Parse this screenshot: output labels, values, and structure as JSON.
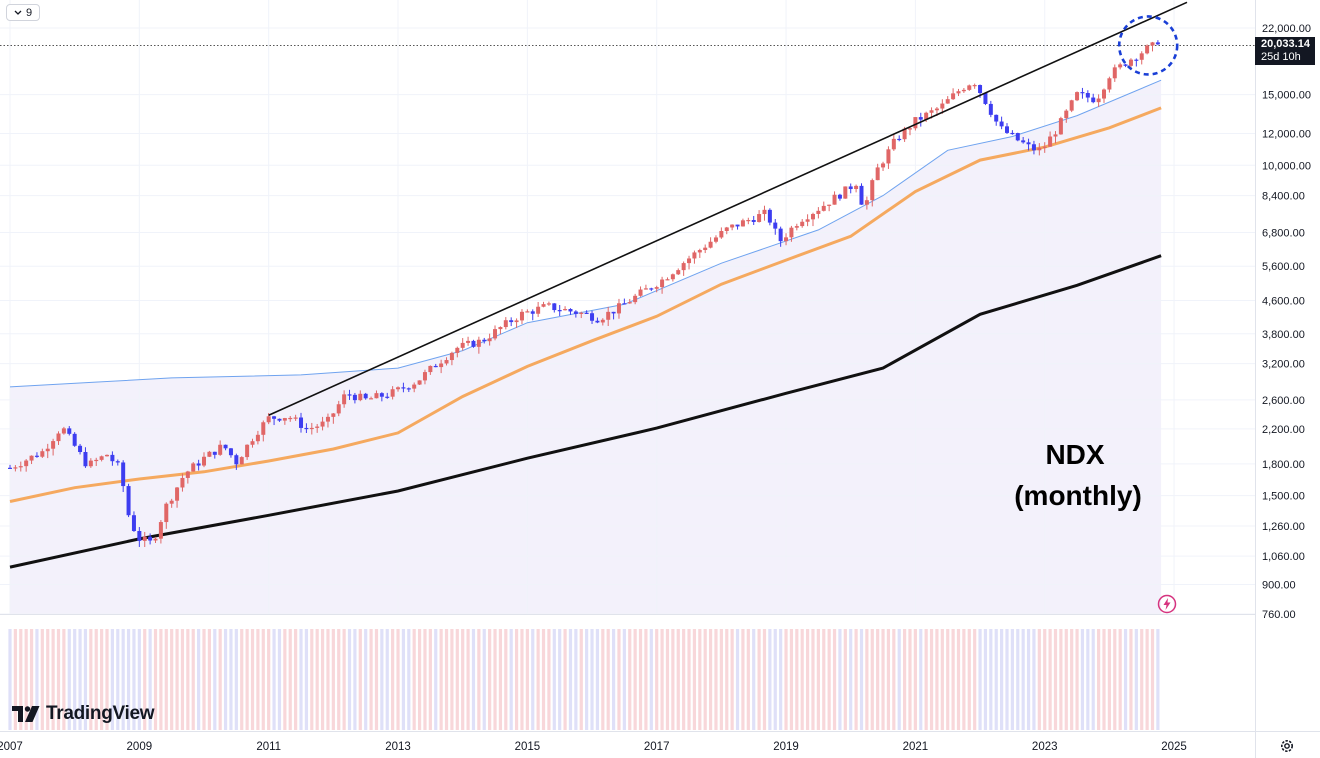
{
  "header": {
    "collapse_count": "9"
  },
  "annotation": {
    "line1": "NDX",
    "line2": "(monthly)"
  },
  "last_price": {
    "value": "20,033.14",
    "countdown": "25d 10h"
  },
  "branding": {
    "logo_text": "TradingView"
  },
  "icons": [
    "chevron-down-icon",
    "lightning-icon",
    "settings-icon",
    "tradingview-logo-icon"
  ],
  "colors": {
    "up_candle": "#e06666",
    "down_candle": "#3d3df0",
    "ma_fast": "#6fa3ef",
    "ma_mid": "#f5a95f",
    "ma_slow": "#111111",
    "channel_fill": "#f3f1fb",
    "highlight_circle": "#1a3fd6"
  },
  "chart_data": {
    "type": "candlestick",
    "symbol": "NDX",
    "timeframe": "monthly",
    "y_axis": {
      "scale": "log",
      "ylim": [
        720,
        24000
      ],
      "ticks": [
        "22,000.00",
        "15,000.00",
        "12,000.00",
        "10,000.00",
        "8,400.00",
        "6,800.00",
        "5,600.00",
        "4,600.00",
        "3,800.00",
        "3,200.00",
        "2,600.00",
        "2,200.00",
        "1,800.00",
        "1,500.00",
        "1,260.00",
        "1,060.00",
        "900.00",
        "760.00"
      ]
    },
    "x_axis": {
      "ticks": [
        "2007",
        "2009",
        "2011",
        "2013",
        "2015",
        "2017",
        "2019",
        "2021",
        "2023",
        "2025"
      ],
      "xlim": [
        2007.0,
        2025.0
      ]
    },
    "price_path": [
      [
        2007.0,
        1760
      ],
      [
        2007.5,
        1930
      ],
      [
        2007.8,
        2230
      ],
      [
        2008.2,
        1780
      ],
      [
        2008.5,
        1900
      ],
      [
        2008.7,
        1750
      ],
      [
        2008.85,
        1300
      ],
      [
        2009.0,
        1170
      ],
      [
        2009.2,
        1140
      ],
      [
        2009.4,
        1400
      ],
      [
        2009.7,
        1700
      ],
      [
        2010.0,
        1860
      ],
      [
        2010.3,
        2000
      ],
      [
        2010.5,
        1820
      ],
      [
        2010.8,
        2150
      ],
      [
        2011.0,
        2340
      ],
      [
        2011.3,
        2370
      ],
      [
        2011.6,
        2200
      ],
      [
        2011.9,
        2280
      ],
      [
        2012.2,
        2700
      ],
      [
        2012.5,
        2600
      ],
      [
        2012.9,
        2700
      ],
      [
        2013.3,
        2900
      ],
      [
        2013.6,
        3200
      ],
      [
        2013.9,
        3500
      ],
      [
        2014.3,
        3650
      ],
      [
        2014.6,
        3950
      ],
      [
        2014.9,
        4250
      ],
      [
        2015.3,
        4450
      ],
      [
        2015.6,
        4350
      ],
      [
        2015.9,
        4250
      ],
      [
        2016.1,
        4150
      ],
      [
        2016.4,
        4400
      ],
      [
        2016.8,
        4850
      ],
      [
        2017.1,
        5200
      ],
      [
        2017.4,
        5700
      ],
      [
        2017.8,
        6400
      ],
      [
        2018.1,
        6950
      ],
      [
        2018.5,
        7400
      ],
      [
        2018.7,
        7600
      ],
      [
        2018.9,
        6450
      ],
      [
        2019.2,
        7300
      ],
      [
        2019.5,
        7800
      ],
      [
        2019.9,
        8600
      ],
      [
        2020.1,
        9100
      ],
      [
        2020.2,
        7700
      ],
      [
        2020.4,
        9700
      ],
      [
        2020.7,
        11600
      ],
      [
        2021.0,
        12900
      ],
      [
        2021.4,
        14000
      ],
      [
        2021.7,
        15500
      ],
      [
        2021.9,
        16300
      ],
      [
        2022.1,
        14300
      ],
      [
        2022.3,
        12400
      ],
      [
        2022.6,
        11500
      ],
      [
        2022.8,
        11000
      ],
      [
        2022.95,
        10900
      ],
      [
        2023.2,
        12400
      ],
      [
        2023.5,
        15000
      ],
      [
        2023.8,
        14600
      ],
      [
        2024.0,
        16800
      ],
      [
        2024.3,
        18300
      ],
      [
        2024.6,
        19600
      ],
      [
        2024.75,
        20033
      ]
    ],
    "series": [
      {
        "kind": "moving_average_fast",
        "points": [
          [
            2007.0,
            2800
          ],
          [
            2009.5,
            2950
          ],
          [
            2011.5,
            3000
          ],
          [
            2013.0,
            3120
          ],
          [
            2014.0,
            3450
          ],
          [
            2015.0,
            4050
          ],
          [
            2016.5,
            4500
          ],
          [
            2018.0,
            5700
          ],
          [
            2019.5,
            6900
          ],
          [
            2020.5,
            8400
          ],
          [
            2021.5,
            10900
          ],
          [
            2022.5,
            11800
          ],
          [
            2023.5,
            13300
          ],
          [
            2024.8,
            16300
          ]
        ]
      },
      {
        "kind": "moving_average_mid",
        "points": [
          [
            2007.0,
            1450
          ],
          [
            2008.0,
            1570
          ],
          [
            2009.0,
            1650
          ],
          [
            2010.0,
            1720
          ],
          [
            2011.0,
            1830
          ],
          [
            2012.0,
            1960
          ],
          [
            2013.0,
            2150
          ],
          [
            2014.0,
            2650
          ],
          [
            2015.0,
            3150
          ],
          [
            2016.0,
            3650
          ],
          [
            2017.0,
            4200
          ],
          [
            2018.0,
            5050
          ],
          [
            2019.0,
            5800
          ],
          [
            2020.0,
            6650
          ],
          [
            2021.0,
            8600
          ],
          [
            2022.0,
            10300
          ],
          [
            2023.0,
            11100
          ],
          [
            2024.0,
            12400
          ],
          [
            2024.8,
            13900
          ]
        ]
      },
      {
        "kind": "moving_average_slow",
        "points": [
          [
            2007.0,
            995
          ],
          [
            2009.0,
            1170
          ],
          [
            2011.0,
            1340
          ],
          [
            2013.0,
            1540
          ],
          [
            2015.0,
            1860
          ],
          [
            2017.0,
            2210
          ],
          [
            2019.0,
            2700
          ],
          [
            2020.5,
            3120
          ],
          [
            2022.0,
            4250
          ],
          [
            2023.5,
            5020
          ],
          [
            2024.8,
            5950
          ]
        ]
      }
    ],
    "trendline": {
      "from": [
        2011.0,
        2380
      ],
      "to": [
        2025.2,
        25500
      ]
    },
    "highlight_circle_center": [
      2024.6,
      19900
    ],
    "last_value": 20033.14
  }
}
